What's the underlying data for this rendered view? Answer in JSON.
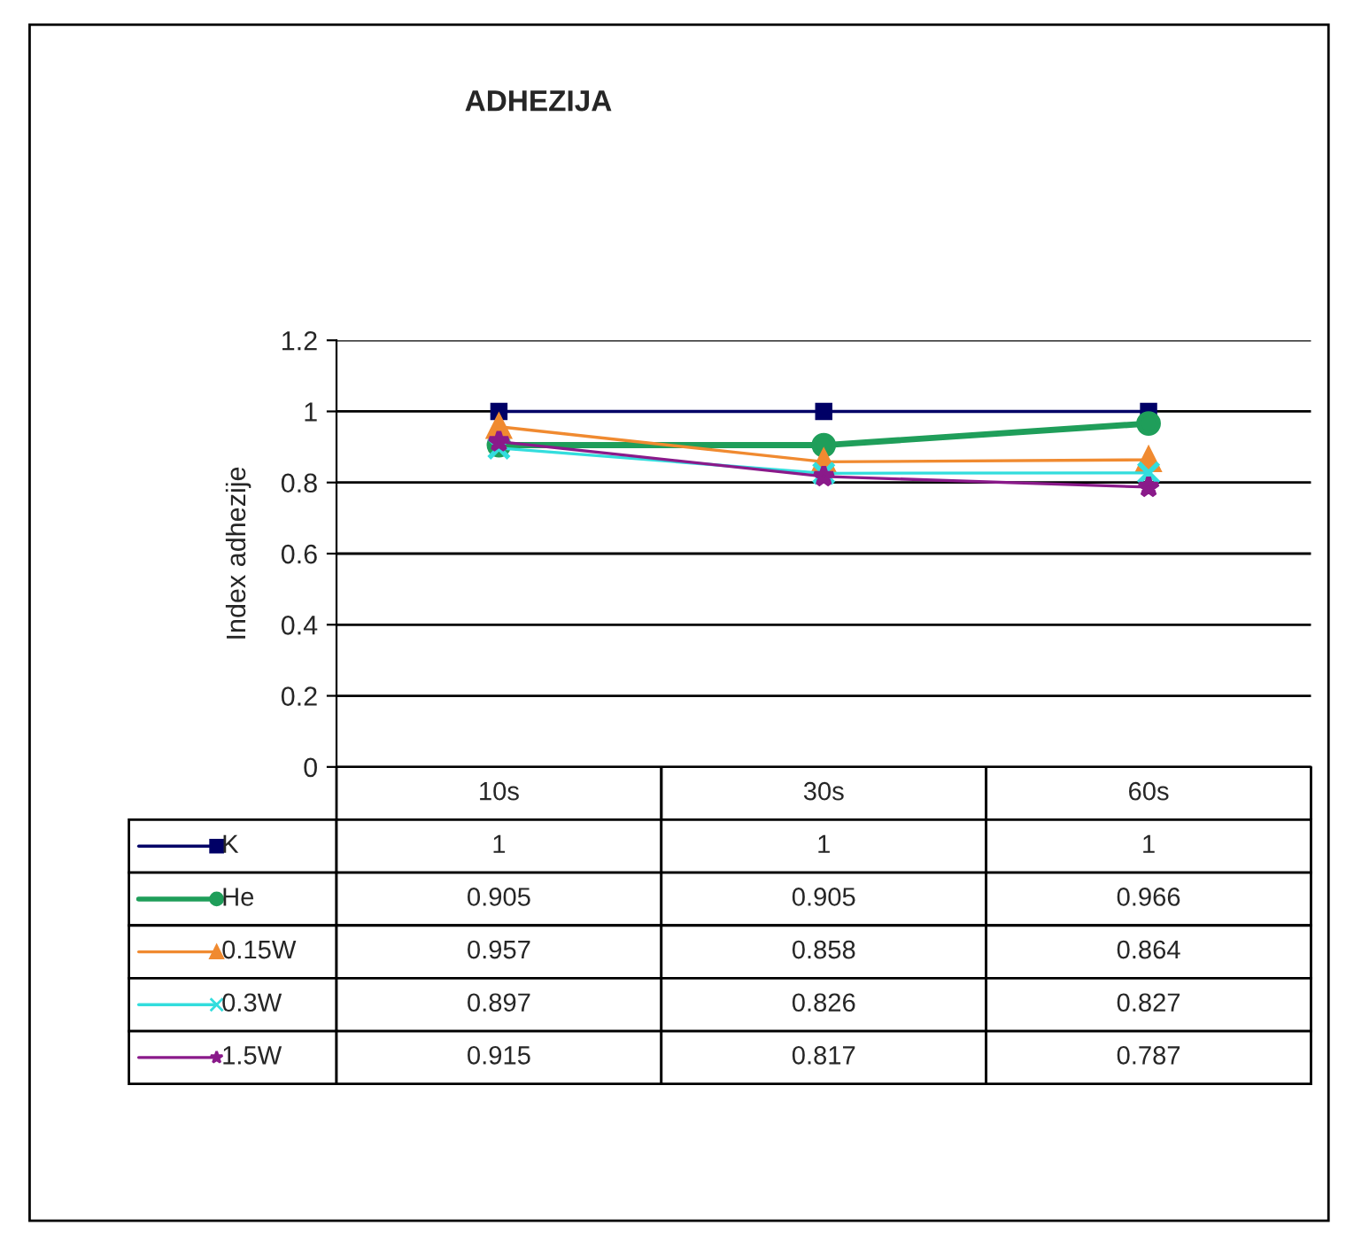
{
  "chart_data": {
    "type": "line",
    "title": "ADHEZIJA",
    "ylabel": "Index adhezije",
    "categories": [
      "10s",
      "30s",
      "60s"
    ],
    "series": [
      {
        "name": "K",
        "color": "#000066",
        "marker": "square",
        "values": [
          1,
          1,
          1
        ]
      },
      {
        "name": "He",
        "color": "#1f9e5a",
        "marker": "circle",
        "values": [
          0.905,
          0.905,
          0.966
        ]
      },
      {
        "name": "0.15W",
        "color": "#f08a30",
        "marker": "triangle",
        "values": [
          0.957,
          0.858,
          0.864
        ]
      },
      {
        "name": "0.3W",
        "color": "#33dddd",
        "marker": "cross",
        "values": [
          0.897,
          0.826,
          0.827
        ]
      },
      {
        "name": "1.5W",
        "color": "#8a1a8a",
        "marker": "star",
        "values": [
          0.915,
          0.817,
          0.787
        ]
      }
    ],
    "ylim": [
      0,
      1.2
    ],
    "yticks": [
      0,
      0.2,
      0.4,
      0.6,
      0.8,
      1,
      1.2
    ],
    "grid": "y",
    "data_labels": true,
    "legend": "bottom left"
  }
}
